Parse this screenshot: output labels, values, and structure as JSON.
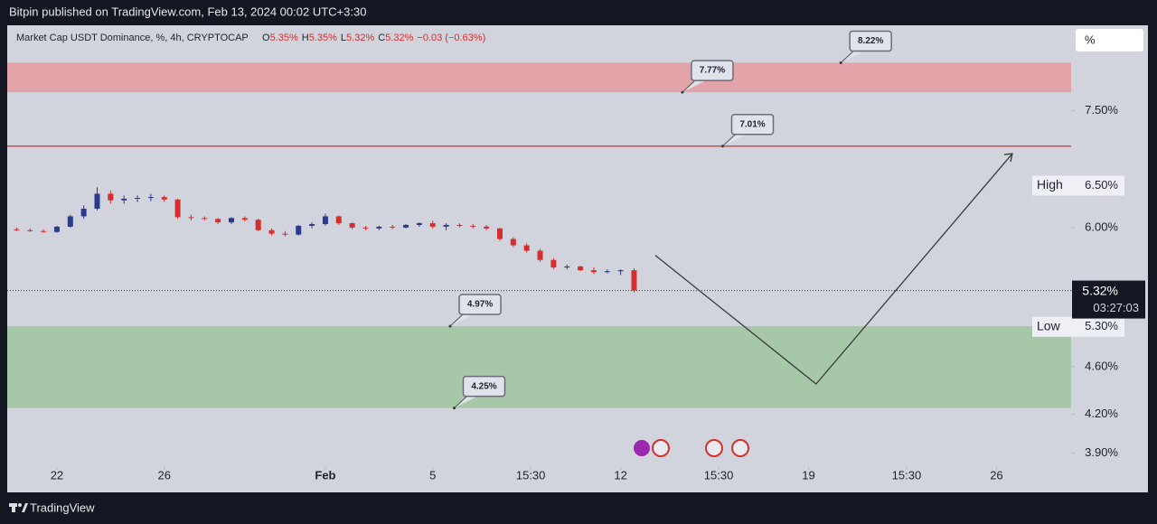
{
  "chart_data": {
    "type": "candlestick",
    "header": "Bitpin published on TradingView.com, Feb 13, 2024 00:02 UTC+3:30",
    "legend": {
      "title": "Market Cap USDT Dominance, %, 4h, CRYPTOCAP",
      "ohlc": [
        {
          "key": "O",
          "text": "5.35%"
        },
        {
          "key": "H",
          "text": "5.35%"
        },
        {
          "key": "L",
          "text": "5.32%"
        },
        {
          "key": "C",
          "text": "5.32%"
        }
      ],
      "change": "−0.03 (−0.63%)"
    },
    "x": [
      20.5,
      21,
      21.5,
      22,
      22.5,
      23,
      23.5,
      24,
      24.5,
      25,
      25.5,
      26,
      26.5,
      27,
      27.5,
      28,
      28.5,
      29,
      29.5,
      30,
      30.5,
      31,
      31.5,
      32,
      32.5,
      33,
      33.5,
      34,
      34.5,
      35,
      35.5,
      36,
      36.5,
      37,
      37.5,
      38,
      38.5,
      39,
      39.5,
      40,
      40.5,
      41,
      41.5,
      42,
      42.5,
      43,
      43.5
    ],
    "open": [
      5.98,
      5.97,
      5.96,
      5.95,
      6.01,
      6.13,
      6.22,
      6.4,
      6.32,
      6.34,
      6.35,
      6.36,
      6.33,
      6.12,
      6.11,
      6.1,
      6.06,
      6.11,
      6.09,
      5.97,
      5.93,
      5.92,
      6.02,
      6.04,
      6.13,
      6.05,
      6.0,
      5.99,
      6.01,
      6.0,
      6.03,
      6.05,
      6.01,
      6.03,
      6.02,
      6.01,
      5.99,
      5.87,
      5.8,
      5.74,
      5.64,
      5.56,
      5.57,
      5.53,
      5.51,
      5.52,
      5.53
    ],
    "high": [
      6.0,
      5.99,
      5.98,
      6.02,
      6.15,
      6.26,
      6.48,
      6.44,
      6.38,
      6.38,
      6.4,
      6.38,
      6.34,
      6.15,
      6.13,
      6.11,
      6.12,
      6.13,
      6.1,
      5.99,
      5.96,
      6.03,
      6.06,
      6.16,
      6.14,
      6.06,
      6.02,
      6.02,
      6.03,
      6.04,
      6.06,
      6.08,
      6.05,
      6.05,
      6.04,
      6.03,
      6.0,
      5.89,
      5.82,
      5.76,
      5.66,
      5.59,
      5.58,
      5.56,
      5.54,
      5.54,
      5.55
    ],
    "low": [
      5.96,
      5.95,
      5.94,
      5.94,
      6.0,
      6.1,
      6.2,
      6.28,
      6.28,
      6.3,
      6.31,
      6.3,
      6.1,
      6.08,
      6.08,
      6.04,
      6.04,
      6.07,
      5.96,
      5.91,
      5.9,
      5.91,
      5.99,
      6.02,
      6.03,
      5.98,
      5.97,
      5.97,
      5.98,
      5.99,
      6.01,
      5.99,
      5.97,
      6.0,
      5.99,
      5.97,
      5.85,
      5.78,
      5.72,
      5.62,
      5.54,
      5.54,
      5.52,
      5.49,
      5.5,
      5.48,
      5.3
    ],
    "close": [
      5.97,
      5.96,
      5.95,
      6.01,
      6.13,
      6.22,
      6.4,
      6.32,
      6.34,
      6.35,
      6.36,
      6.33,
      6.12,
      6.11,
      6.1,
      6.06,
      6.11,
      6.09,
      5.97,
      5.93,
      5.92,
      6.02,
      6.04,
      6.13,
      6.05,
      6.0,
      5.99,
      6.01,
      6.0,
      6.03,
      6.05,
      6.01,
      6.03,
      6.02,
      6.01,
      5.99,
      5.87,
      5.8,
      5.74,
      5.64,
      5.56,
      5.57,
      5.53,
      5.51,
      5.52,
      5.53,
      5.32
    ],
    "colors": {
      "up": "#2b3a8f",
      "down": "#d32f2f"
    },
    "log_scale": true,
    "ylim": [
      3.81,
      8.83
    ],
    "yticks": [
      {
        "value": 7.5,
        "label": "7.50%"
      },
      {
        "value": 6.0,
        "label": "6.00%"
      },
      {
        "value": 4.6,
        "label": "4.60%"
      },
      {
        "value": 4.2,
        "label": "4.20%"
      },
      {
        "value": 3.9,
        "label": "3.90%"
      }
    ],
    "xlim": [
      20.15,
      59.78
    ],
    "xticks": [
      22,
      26,
      {
        "value": 32,
        "label": "Feb"
      },
      {
        "value": 36,
        "label": "5"
      },
      {
        "value": 39.65,
        "label": "15:30"
      },
      {
        "value": 43,
        "label": "12"
      },
      {
        "value": 46.65,
        "label": "15:30"
      },
      {
        "value": 50,
        "label": "19"
      },
      {
        "value": 53.65,
        "label": "15:30"
      },
      {
        "value": 57,
        "label": "26"
      }
    ],
    "y_unit": "%",
    "last_price": {
      "value": 5.32,
      "label": "5.32%",
      "countdown": "03:27:03"
    },
    "high_marker": {
      "text": "High",
      "value": 6.5,
      "label": "6.50%"
    },
    "low_marker": {
      "text": "Low",
      "value": 5.3,
      "label": "5.30%"
    },
    "zones": [
      {
        "from": 7.77,
        "to": 8.22,
        "color": "#e2a3a9"
      },
      {
        "from": 4.25,
        "to": 4.97,
        "color": "#a6c8a9"
      }
    ],
    "hlines": [
      {
        "value": 7.01,
        "color": "#e0474c"
      }
    ],
    "annotations": [
      {
        "text": "8.22%",
        "value": 8.22,
        "x": 51.2
      },
      {
        "text": "7.77%",
        "value": 7.77,
        "x": 45.3
      },
      {
        "text": "7.01%",
        "value": 7.01,
        "x": 46.8
      },
      {
        "text": "4.97%",
        "value": 4.97,
        "x": 36.65
      },
      {
        "text": "4.25%",
        "value": 4.25,
        "x": 36.8
      }
    ],
    "projection": {
      "x": [
        44.29,
        50.28,
        57.59
      ],
      "values": [
        5.69,
        4.45,
        6.91
      ],
      "color": "#3a3a3a"
    },
    "footer": "TradingView"
  }
}
